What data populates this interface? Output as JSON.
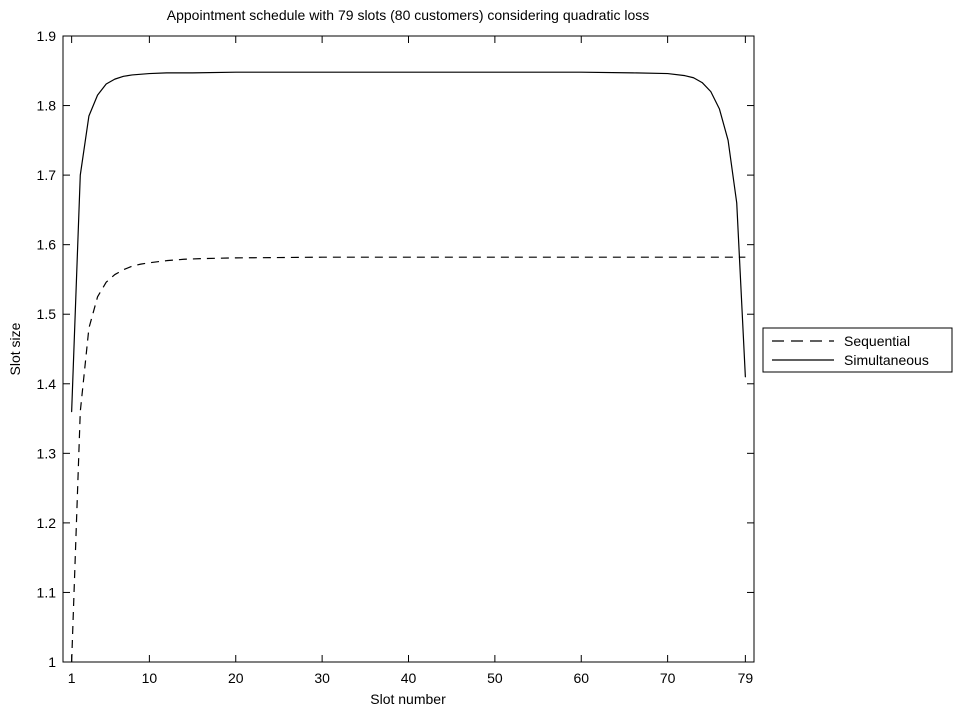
{
  "chart_data": {
    "type": "line",
    "title": "Appointment schedule with 79 slots (80 customers) considering quadratic loss",
    "xlabel": "Slot number",
    "ylabel": "Slot size",
    "xlim": [
      0,
      80
    ],
    "ylim": [
      1,
      1.9
    ],
    "xticks": [
      1,
      10,
      20,
      30,
      40,
      50,
      60,
      70,
      79
    ],
    "yticks": [
      1,
      1.1,
      1.2,
      1.3,
      1.4,
      1.5,
      1.6,
      1.7,
      1.8,
      1.9
    ],
    "grid": false,
    "legend_position": "right",
    "series": [
      {
        "name": "Sequential",
        "line_style": "dashed",
        "color": "#000000",
        "x": [
          1,
          2,
          3,
          4,
          5,
          6,
          7,
          8,
          9,
          10,
          12,
          14,
          16,
          20,
          30,
          40,
          50,
          60,
          70,
          75,
          79
        ],
        "y": [
          1.0,
          1.36,
          1.48,
          1.525,
          1.546,
          1.557,
          1.564,
          1.569,
          1.572,
          1.574,
          1.577,
          1.579,
          1.58,
          1.581,
          1.582,
          1.582,
          1.582,
          1.582,
          1.582,
          1.582,
          1.582
        ]
      },
      {
        "name": "Simultaneous",
        "line_style": "solid",
        "color": "#000000",
        "x": [
          1,
          2,
          3,
          4,
          5,
          6,
          7,
          8,
          10,
          12,
          15,
          20,
          30,
          40,
          50,
          60,
          66,
          70,
          72,
          73,
          74,
          75,
          76,
          77,
          78,
          79
        ],
        "y": [
          1.36,
          1.7,
          1.785,
          1.815,
          1.831,
          1.838,
          1.842,
          1.844,
          1.846,
          1.847,
          1.847,
          1.848,
          1.848,
          1.848,
          1.848,
          1.848,
          1.847,
          1.846,
          1.843,
          1.84,
          1.833,
          1.82,
          1.795,
          1.75,
          1.66,
          1.41
        ]
      }
    ]
  }
}
